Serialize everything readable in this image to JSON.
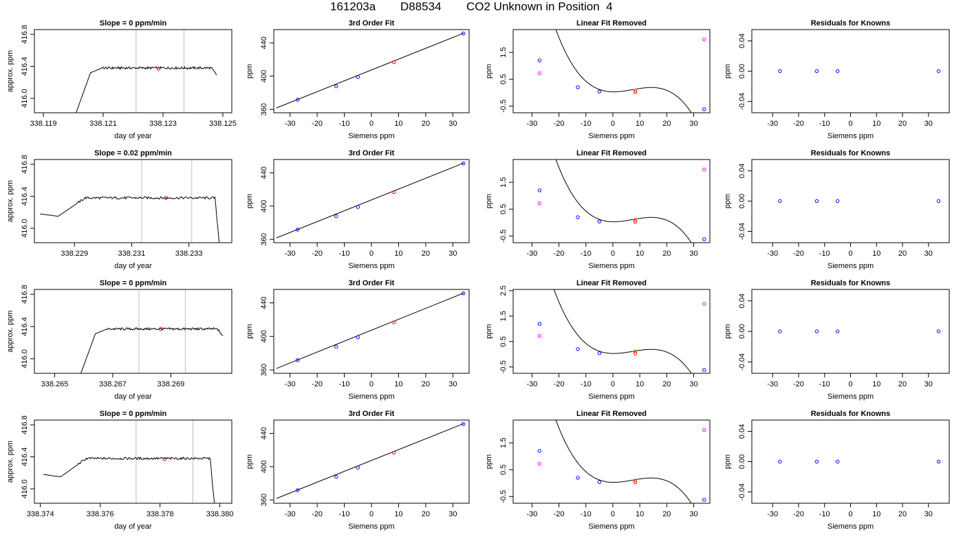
{
  "header": {
    "run_id": "161203a",
    "tank_id": "D88534",
    "description": "CO2 Unknown in Position  4"
  },
  "colors": {
    "trace": "#000000",
    "marker_blue": "#0000ff",
    "marker_red": "#ff0000",
    "marker_magenta": "#ff00ff",
    "marker_orange": "#ff8c00",
    "window_line": "#bebebe"
  },
  "chart_data": [
    {
      "type": "line",
      "row": 0,
      "col": 0,
      "title": "Slope =  0  ppm/min",
      "xlabel": "day of year",
      "ylabel": "approx. ppm",
      "xlim": [
        338.1187,
        338.1253
      ],
      "ylim": [
        415.82,
        416.86
      ],
      "xticks": [
        338.119,
        338.121,
        338.123,
        338.125
      ],
      "xtick_labels": [
        "338.119",
        "338.121",
        "338.123",
        "338.125"
      ],
      "yticks": [
        416.0,
        416.4,
        416.8
      ],
      "ytick_labels": [
        "416.0",
        "416.4",
        "416.8"
      ],
      "trace": {
        "x0": 338.12,
        "x1": 338.1248,
        "level": 416.38,
        "ramp": "rise_from_below",
        "tail": "drop_end"
      },
      "window": [
        338.1221,
        338.1237
      ],
      "point": {
        "x": 338.12285,
        "y": 416.37
      }
    },
    {
      "type": "scatter",
      "row": 0,
      "col": 1,
      "title": "3rd Order Fit",
      "xlabel": "Siemens ppm",
      "ylabel": "ppm",
      "xlim": [
        -36,
        36
      ],
      "ylim": [
        356,
        456
      ],
      "xticks": [
        -30,
        -20,
        -10,
        0,
        10,
        20,
        30
      ],
      "xtick_labels": [
        "-30",
        "-20",
        "-10",
        "0",
        "10",
        "20",
        "30"
      ],
      "yticks": [
        360,
        400,
        440
      ],
      "ytick_labels": [
        "360",
        "400",
        "440"
      ],
      "known_points": [
        [
          -27.2,
          371.7
        ],
        [
          -13.0,
          387.8
        ],
        [
          -5.0,
          398.9
        ],
        [
          33.9,
          451.3
        ]
      ],
      "unknown_point": [
        8.3,
        416.8
      ],
      "fit_line": [
        [
          -35,
          361.8
        ],
        [
          34,
          451.7
        ]
      ]
    },
    {
      "type": "scatter",
      "row": 0,
      "col": 2,
      "title": "Linear Fit Removed",
      "xlabel": "Siemens ppm",
      "ylabel": "ppm",
      "xlim": [
        -37,
        36
      ],
      "ylim": [
        -0.75,
        2.35
      ],
      "xticks": [
        -30,
        -20,
        -10,
        0,
        10,
        20,
        30
      ],
      "xtick_labels": [
        "-30",
        "-20",
        "-10",
        "0",
        "10",
        "20",
        "30"
      ],
      "yticks": [
        -0.5,
        0.5,
        1.5
      ],
      "ytick_labels": [
        "-0.5",
        "0.5",
        "1.5"
      ],
      "known_points": [
        [
          -27.2,
          1.2
        ],
        [
          -13.0,
          0.2
        ],
        [
          -5.0,
          0.04
        ],
        [
          33.9,
          -0.62
        ]
      ],
      "magenta_points": [
        [
          -27.2,
          0.72
        ],
        [
          33.9,
          1.98
        ]
      ],
      "orange_point": [
        8.3,
        0.08
      ],
      "red_point": [
        8.3,
        0.03
      ],
      "curve_coefficients": [
        0.03,
        -0.0016,
        0.0026,
        -0.000119
      ]
    },
    {
      "type": "scatter",
      "row": 0,
      "col": 3,
      "title": "Residuals for Knowns",
      "xlabel": "Siemens ppm",
      "ylabel": "ppm",
      "xlim": [
        -38,
        38
      ],
      "ylim": [
        -0.055,
        0.055
      ],
      "xticks": [
        -30,
        -20,
        -10,
        0,
        10,
        20,
        30
      ],
      "xtick_labels": [
        "-30",
        "-20",
        "-10",
        "0",
        "10",
        "20",
        "30"
      ],
      "yticks": [
        -0.04,
        0.0,
        0.04
      ],
      "ytick_labels": [
        "-0.04",
        "0.00",
        "0.04"
      ],
      "points": [
        [
          -27.2,
          0
        ],
        [
          -13.0,
          0
        ],
        [
          -5.0,
          0
        ],
        [
          33.9,
          0
        ]
      ]
    },
    {
      "type": "line",
      "row": 1,
      "col": 0,
      "title": "Slope =  0.02  ppm/min",
      "xlabel": "day of year",
      "ylabel": "approx. ppm",
      "xlim": [
        338.2276,
        338.2345
      ],
      "ylim": [
        415.82,
        416.86
      ],
      "xticks": [
        338.229,
        338.231,
        338.233
      ],
      "xtick_labels": [
        "338.229",
        "338.231",
        "338.233"
      ],
      "yticks": [
        416.0,
        416.4,
        416.8
      ],
      "ytick_labels": [
        "416.0",
        "416.4",
        "416.8"
      ],
      "trace": {
        "x0": 338.2278,
        "x1": 338.2341,
        "level": 416.38,
        "ramp": "rise_from_low_start",
        "tail": "drop_end_sharp"
      },
      "window": [
        338.23135,
        338.2331
      ],
      "point": {
        "x": 338.2322,
        "y": 416.38
      }
    },
    {
      "type": "scatter",
      "row": 1,
      "col": 1,
      "title": "3rd Order Fit",
      "xlabel": "Siemens ppm",
      "ylabel": "ppm",
      "xlim": [
        -36,
        36
      ],
      "ylim": [
        356,
        456
      ],
      "xticks": [
        -30,
        -20,
        -10,
        0,
        10,
        20,
        30
      ],
      "xtick_labels": [
        "-30",
        "-20",
        "-10",
        "0",
        "10",
        "20",
        "30"
      ],
      "yticks": [
        360,
        400,
        440
      ],
      "ytick_labels": [
        "360",
        "400",
        "440"
      ],
      "known_points": [
        [
          -27.2,
          371.7
        ],
        [
          -13.0,
          387.8
        ],
        [
          -5.0,
          398.9
        ],
        [
          33.9,
          451.3
        ]
      ],
      "unknown_point": [
        8.3,
        416.8
      ],
      "fit_line": [
        [
          -35,
          361.8
        ],
        [
          34,
          451.7
        ]
      ]
    },
    {
      "type": "scatter",
      "row": 1,
      "col": 2,
      "title": "Linear Fit Removed",
      "xlabel": "Siemens ppm",
      "ylabel": "ppm",
      "xlim": [
        -37,
        36
      ],
      "ylim": [
        -0.75,
        2.35
      ],
      "xticks": [
        -30,
        -20,
        -10,
        0,
        10,
        20,
        30
      ],
      "xtick_labels": [
        "-30",
        "-20",
        "-10",
        "0",
        "10",
        "20",
        "30"
      ],
      "yticks": [
        -0.5,
        0.5,
        1.5
      ],
      "ytick_labels": [
        "-0.5",
        "0.5",
        "1.5"
      ],
      "known_points": [
        [
          -27.2,
          1.2
        ],
        [
          -13.0,
          0.2
        ],
        [
          -5.0,
          0.04
        ],
        [
          33.9,
          -0.62
        ]
      ],
      "magenta_points": [
        [
          -27.2,
          0.72
        ],
        [
          33.9,
          1.98
        ]
      ],
      "orange_point": [
        8.3,
        0.1
      ],
      "red_point": [
        8.3,
        0.03
      ],
      "curve_coefficients": [
        0.03,
        -0.0016,
        0.0026,
        -0.000119
      ]
    },
    {
      "type": "scatter",
      "row": 1,
      "col": 3,
      "title": "Residuals for Knowns",
      "xlabel": "Siemens ppm",
      "ylabel": "ppm",
      "xlim": [
        -38,
        38
      ],
      "ylim": [
        -0.055,
        0.055
      ],
      "xticks": [
        -30,
        -20,
        -10,
        0,
        10,
        20,
        30
      ],
      "xtick_labels": [
        "-30",
        "-20",
        "-10",
        "0",
        "10",
        "20",
        "30"
      ],
      "yticks": [
        -0.04,
        0.0,
        0.04
      ],
      "ytick_labels": [
        "-0.04",
        "0.00",
        "0.04"
      ],
      "points": [
        [
          -27.2,
          0
        ],
        [
          -13.0,
          0
        ],
        [
          -5.0,
          0
        ],
        [
          33.9,
          0
        ]
      ]
    },
    {
      "type": "line",
      "row": 2,
      "col": 0,
      "title": "Slope =  0  ppm/min",
      "xlabel": "day of year",
      "ylabel": "approx. ppm",
      "xlim": [
        338.2643,
        338.2711
      ],
      "ylim": [
        415.82,
        416.86
      ],
      "xticks": [
        338.265,
        338.267,
        338.269
      ],
      "xtick_labels": [
        "338.265",
        "338.267",
        "338.269"
      ],
      "yticks": [
        416.0,
        416.4,
        416.8
      ],
      "ytick_labels": [
        "416.0",
        "416.4",
        "416.8"
      ],
      "trace": {
        "x0": 338.2658,
        "x1": 338.2708,
        "level": 416.37,
        "ramp": "rise_from_below",
        "tail": "drop_end"
      },
      "window": [
        338.2679,
        338.2695
      ],
      "point": {
        "x": 338.26865,
        "y": 416.37
      }
    },
    {
      "type": "scatter",
      "row": 2,
      "col": 1,
      "title": "3rd Order Fit",
      "xlabel": "Siemens ppm",
      "ylabel": "ppm",
      "xlim": [
        -36,
        36
      ],
      "ylim": [
        356,
        456
      ],
      "xticks": [
        -30,
        -20,
        -10,
        0,
        10,
        20,
        30
      ],
      "xtick_labels": [
        "-30",
        "-20",
        "-10",
        "0",
        "10",
        "20",
        "30"
      ],
      "yticks": [
        360,
        400,
        440
      ],
      "ytick_labels": [
        "360",
        "400",
        "440"
      ],
      "known_points": [
        [
          -27.2,
          371.7
        ],
        [
          -13.0,
          387.8
        ],
        [
          -5.0,
          398.9
        ],
        [
          33.9,
          451.3
        ]
      ],
      "unknown_point": [
        8.3,
        416.8
      ],
      "fit_line": [
        [
          -35,
          361.8
        ],
        [
          34,
          451.7
        ]
      ]
    },
    {
      "type": "scatter",
      "row": 2,
      "col": 2,
      "title": "Linear Fit Removed",
      "xlabel": "Siemens ppm",
      "ylabel": "ppm",
      "xlim": [
        -37,
        36
      ],
      "ylim": [
        -0.75,
        2.55
      ],
      "xticks": [
        -30,
        -20,
        -10,
        0,
        10,
        20,
        30
      ],
      "xtick_labels": [
        "-30",
        "-20",
        "-10",
        "0",
        "10",
        "20",
        "30"
      ],
      "yticks": [
        -0.5,
        0.5,
        1.5,
        2.5
      ],
      "ytick_labels": [
        "-0.5",
        "0.5",
        "1.5",
        "2.5"
      ],
      "known_points": [
        [
          -27.2,
          1.2
        ],
        [
          -13.0,
          0.2
        ],
        [
          -5.0,
          0.04
        ],
        [
          33.9,
          -0.62
        ]
      ],
      "magenta_points": [
        [
          -27.2,
          0.72
        ],
        [
          33.9,
          1.98
        ]
      ],
      "orange_point": [
        8.3,
        0.12
      ],
      "red_point": [
        8.3,
        0.03
      ],
      "curve_coefficients": [
        0.03,
        -0.0016,
        0.0026,
        -0.000119
      ]
    },
    {
      "type": "scatter",
      "row": 2,
      "col": 3,
      "title": "Residuals for Knowns",
      "xlabel": "Siemens ppm",
      "ylabel": "ppm",
      "xlim": [
        -38,
        38
      ],
      "ylim": [
        -0.055,
        0.055
      ],
      "xticks": [
        -30,
        -20,
        -10,
        0,
        10,
        20,
        30
      ],
      "xtick_labels": [
        "-30",
        "-20",
        "-10",
        "0",
        "10",
        "20",
        "30"
      ],
      "yticks": [
        -0.04,
        0.0,
        0.04
      ],
      "ytick_labels": [
        "-0.04",
        "0.00",
        "0.04"
      ],
      "points": [
        [
          -27.2,
          0
        ],
        [
          -13.0,
          0
        ],
        [
          -5.0,
          0
        ],
        [
          33.9,
          0
        ]
      ]
    },
    {
      "type": "line",
      "row": 3,
      "col": 0,
      "title": "Slope =  0  ppm/min",
      "xlabel": "day of year",
      "ylabel": "approx. ppm",
      "xlim": [
        338.3738,
        338.3804
      ],
      "ylim": [
        415.82,
        416.86
      ],
      "xticks": [
        338.374,
        338.376,
        338.378,
        338.38
      ],
      "xtick_labels": [
        "338.374",
        "338.376",
        "338.378",
        "338.380"
      ],
      "yticks": [
        416.0,
        416.4,
        416.8
      ],
      "ytick_labels": [
        "416.0",
        "416.4",
        "416.8"
      ],
      "trace": {
        "x0": 338.3741,
        "x1": 338.37985,
        "level": 416.38,
        "ramp": "rise_from_low_start",
        "tail": "drop_end_sharp"
      },
      "window": [
        338.3772,
        338.3791
      ],
      "point": {
        "x": 338.37815,
        "y": 416.37
      }
    },
    {
      "type": "scatter",
      "row": 3,
      "col": 1,
      "title": "3rd Order Fit",
      "xlabel": "Siemens ppm",
      "ylabel": "ppm",
      "xlim": [
        -36,
        36
      ],
      "ylim": [
        356,
        456
      ],
      "xticks": [
        -30,
        -20,
        -10,
        0,
        10,
        20,
        30
      ],
      "xtick_labels": [
        "-30",
        "-20",
        "-10",
        "0",
        "10",
        "20",
        "30"
      ],
      "yticks": [
        360,
        400,
        440
      ],
      "ytick_labels": [
        "360",
        "400",
        "440"
      ],
      "known_points": [
        [
          -27.2,
          371.7
        ],
        [
          -13.0,
          387.8
        ],
        [
          -5.0,
          398.9
        ],
        [
          33.9,
          451.3
        ]
      ],
      "unknown_point": [
        8.3,
        416.8
      ],
      "fit_line": [
        [
          -35,
          361.8
        ],
        [
          34,
          451.7
        ]
      ]
    },
    {
      "type": "scatter",
      "row": 3,
      "col": 2,
      "title": "Linear Fit Removed",
      "xlabel": "Siemens ppm",
      "ylabel": "ppm",
      "xlim": [
        -37,
        36
      ],
      "ylim": [
        -0.75,
        2.35
      ],
      "xticks": [
        -30,
        -20,
        -10,
        0,
        10,
        20,
        30
      ],
      "xtick_labels": [
        "-30",
        "-20",
        "-10",
        "0",
        "10",
        "20",
        "30"
      ],
      "yticks": [
        -0.5,
        0.5,
        1.5
      ],
      "ytick_labels": [
        "-0.5",
        "0.5",
        "1.5"
      ],
      "known_points": [
        [
          -27.2,
          1.2
        ],
        [
          -13.0,
          0.2
        ],
        [
          -5.0,
          0.04
        ],
        [
          33.9,
          -0.62
        ]
      ],
      "magenta_points": [
        [
          -27.2,
          0.72
        ],
        [
          33.9,
          1.98
        ]
      ],
      "orange_point": [
        8.3,
        0.1
      ],
      "red_point": [
        8.3,
        0.03
      ],
      "curve_coefficients": [
        0.03,
        -0.0016,
        0.0026,
        -0.000119
      ]
    },
    {
      "type": "scatter",
      "row": 3,
      "col": 3,
      "title": "Residuals for Knowns",
      "xlabel": "Siemens ppm",
      "ylabel": "ppm",
      "xlim": [
        -38,
        38
      ],
      "ylim": [
        -0.055,
        0.055
      ],
      "xticks": [
        -30,
        -20,
        -10,
        0,
        10,
        20,
        30
      ],
      "xtick_labels": [
        "-30",
        "-20",
        "-10",
        "0",
        "10",
        "20",
        "30"
      ],
      "yticks": [
        -0.04,
        0.0,
        0.04
      ],
      "ytick_labels": [
        "-0.04",
        "0.00",
        "0.04"
      ],
      "points": [
        [
          -27.2,
          0
        ],
        [
          -13.0,
          0
        ],
        [
          -5.0,
          0
        ],
        [
          33.9,
          0
        ]
      ]
    }
  ]
}
